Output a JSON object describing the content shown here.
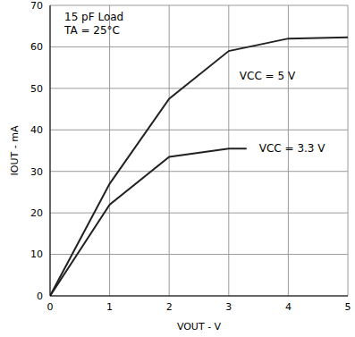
{
  "chart_data": {
    "type": "line",
    "x_label": "VOUT - V",
    "y_label": "IOUT - mA",
    "annotations": [
      "15 pF Load",
      "TA = 25°C"
    ],
    "xlim": [
      0,
      5
    ],
    "xticks": [
      0,
      1,
      2,
      3,
      4,
      5
    ],
    "ylim": [
      0,
      70
    ],
    "yticks": [
      0,
      10,
      20,
      30,
      40,
      50,
      60,
      70
    ],
    "grid": true,
    "series": [
      {
        "name": "VCC = 5 V",
        "color": "#222222",
        "x": [
          0,
          1,
          2,
          3,
          4,
          5
        ],
        "values": [
          0,
          27,
          47.5,
          59,
          62,
          62.3
        ]
      },
      {
        "name": "VCC = 3.3 V",
        "color": "#222222",
        "x": [
          0,
          1,
          2,
          3,
          3.3
        ],
        "values": [
          0,
          22,
          33.5,
          35.5,
          35.5
        ]
      }
    ]
  }
}
